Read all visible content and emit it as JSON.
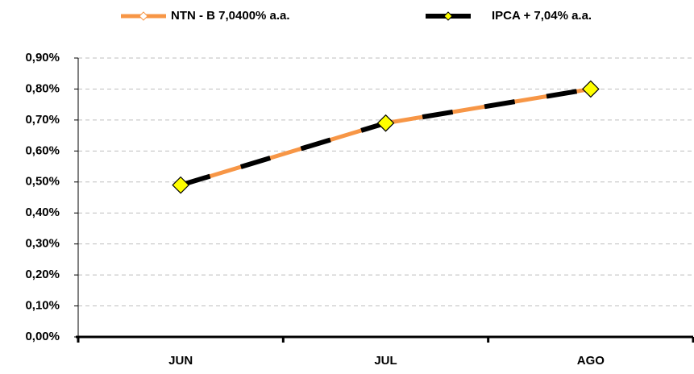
{
  "chart_data": {
    "type": "line",
    "categories": [
      "JUN",
      "JUL",
      "AGO"
    ],
    "series": [
      {
        "name": "NTN - B 7,0400% a.a.",
        "color": "#f79646",
        "marker_fill": "#ffffff",
        "values": [
          0.49,
          0.69,
          0.8
        ]
      },
      {
        "name": "IPCA + 7,04% a.a.",
        "color": "#000000",
        "marker_fill": "#ffff00",
        "dashed": true,
        "values": [
          0.49,
          0.69,
          0.8
        ]
      }
    ],
    "ylim": [
      0,
      0.9
    ],
    "yticks": [
      {
        "value": 0,
        "label": "0,00%"
      },
      {
        "value": 0.1,
        "label": "0,10%"
      },
      {
        "value": 0.2,
        "label": "0,20%"
      },
      {
        "value": 0.3,
        "label": "0,30%"
      },
      {
        "value": 0.4,
        "label": "0,40%"
      },
      {
        "value": 0.5,
        "label": "0,50%"
      },
      {
        "value": 0.6,
        "label": "0,60%"
      },
      {
        "value": 0.7,
        "label": "0,70%"
      },
      {
        "value": 0.8,
        "label": "0,80%"
      },
      {
        "value": 0.9,
        "label": "0,90%"
      }
    ],
    "grid": true,
    "legend": "top"
  }
}
